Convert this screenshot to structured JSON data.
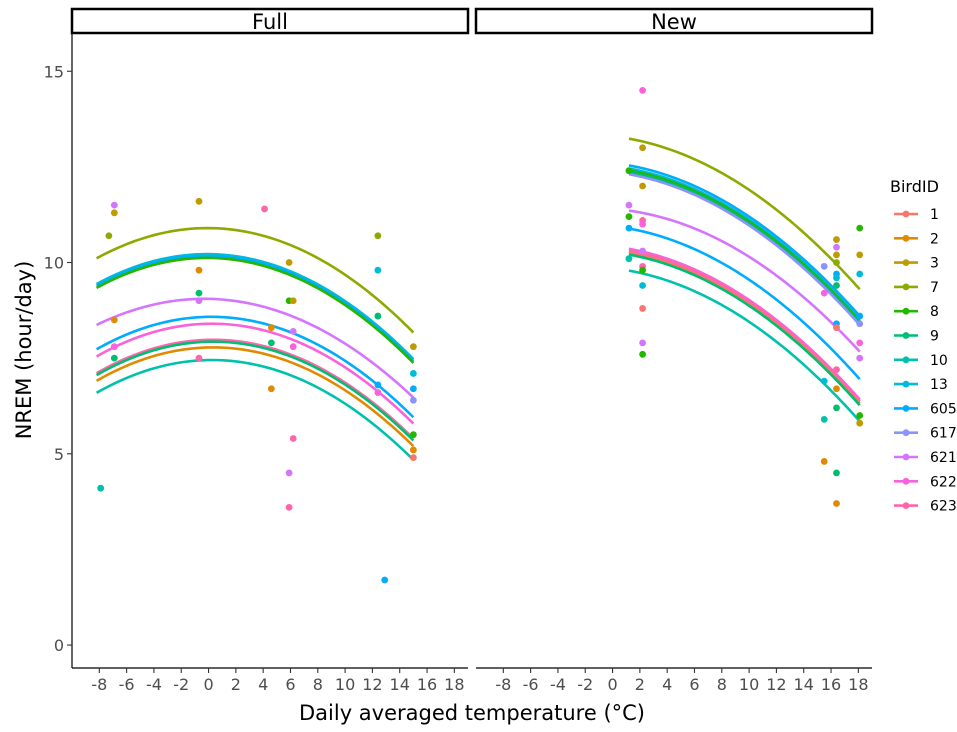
{
  "chart_data": {
    "type": "scatter",
    "xlabel": "Daily averaged temperature (°C)",
    "ylabel": "NREM (hour/day)",
    "xlim": [
      -10,
      19
    ],
    "ylim": [
      -0.6,
      16
    ],
    "x_ticks": [
      -8,
      -6,
      -4,
      -2,
      0,
      2,
      4,
      6,
      8,
      10,
      12,
      14,
      16,
      18
    ],
    "y_ticks": [
      0,
      5,
      10,
      15
    ],
    "grid": false,
    "legend": {
      "title": "BirdID",
      "position": "right"
    },
    "series": [
      {
        "name": "1",
        "color": "#F8766D"
      },
      {
        "name": "2",
        "color": "#E18A00"
      },
      {
        "name": "3",
        "color": "#BE9C00"
      },
      {
        "name": "7",
        "color": "#8CAB00"
      },
      {
        "name": "8",
        "color": "#24B700"
      },
      {
        "name": "9",
        "color": "#00BE70"
      },
      {
        "name": "10",
        "color": "#00C1AB"
      },
      {
        "name": "13",
        "color": "#00BBDA"
      },
      {
        "name": "605",
        "color": "#00ACFC"
      },
      {
        "name": "617",
        "color": "#8B93FF"
      },
      {
        "name": "621",
        "color": "#D575FE"
      },
      {
        "name": "622",
        "color": "#F962DD"
      },
      {
        "name": "623",
        "color": "#FF65AC"
      }
    ],
    "panels": [
      {
        "title": "Full",
        "points": [
          {
            "series": "10",
            "x": -7.9,
            "y": 4.1
          },
          {
            "series": "7",
            "x": -7.3,
            "y": 10.7
          },
          {
            "series": "621",
            "x": -6.9,
            "y": 11.5
          },
          {
            "series": "3",
            "x": -6.9,
            "y": 11.3
          },
          {
            "series": "2",
            "x": -6.9,
            "y": 8.5
          },
          {
            "series": "622",
            "x": -6.9,
            "y": 7.8
          },
          {
            "series": "9",
            "x": -6.9,
            "y": 7.5
          },
          {
            "series": "3",
            "x": -0.7,
            "y": 11.6
          },
          {
            "series": "2",
            "x": -0.7,
            "y": 9.8
          },
          {
            "series": "9",
            "x": -0.7,
            "y": 9.2
          },
          {
            "series": "621",
            "x": -0.7,
            "y": 9.0
          },
          {
            "series": "623",
            "x": -0.7,
            "y": 7.5
          },
          {
            "series": "623",
            "x": 4.1,
            "y": 11.4
          },
          {
            "series": "2",
            "x": 4.6,
            "y": 8.3
          },
          {
            "series": "9",
            "x": 4.6,
            "y": 7.9
          },
          {
            "series": "2",
            "x": 4.6,
            "y": 6.7
          },
          {
            "series": "3",
            "x": 5.9,
            "y": 10.0
          },
          {
            "series": "8",
            "x": 5.9,
            "y": 9.0
          },
          {
            "series": "3",
            "x": 6.2,
            "y": 9.0
          },
          {
            "series": "621",
            "x": 6.2,
            "y": 8.2
          },
          {
            "series": "622",
            "x": 6.2,
            "y": 7.8
          },
          {
            "series": "623",
            "x": 6.2,
            "y": 5.4
          },
          {
            "series": "621",
            "x": 5.9,
            "y": 4.5
          },
          {
            "series": "623",
            "x": 5.9,
            "y": 3.6
          },
          {
            "series": "7",
            "x": 12.4,
            "y": 10.7
          },
          {
            "series": "13",
            "x": 12.4,
            "y": 9.8
          },
          {
            "series": "9",
            "x": 12.4,
            "y": 8.6
          },
          {
            "series": "605",
            "x": 12.4,
            "y": 6.8
          },
          {
            "series": "622",
            "x": 12.4,
            "y": 6.6
          },
          {
            "series": "605",
            "x": 12.9,
            "y": 1.7
          },
          {
            "series": "3",
            "x": 15.0,
            "y": 7.8
          },
          {
            "series": "13",
            "x": 15.0,
            "y": 7.1
          },
          {
            "series": "605",
            "x": 15.0,
            "y": 6.7
          },
          {
            "series": "617",
            "x": 15.0,
            "y": 6.4
          },
          {
            "series": "8",
            "x": 15.0,
            "y": 5.5
          },
          {
            "series": "2",
            "x": 15.0,
            "y": 5.1
          },
          {
            "series": "1",
            "x": 15.0,
            "y": 4.9
          }
        ],
        "fits": [
          {
            "series": "7",
            "xmin": -8.2,
            "xmax": 15.0,
            "c": [
              10.9,
              -0.002,
              -0.012
            ]
          },
          {
            "series": "13",
            "xmin": -8.2,
            "xmax": 15.0,
            "c": [
              10.22,
              -0.003,
              -0.012
            ]
          },
          {
            "series": "605",
            "xmin": -8.2,
            "xmax": 15.0,
            "c": [
              10.17,
              -0.003,
              -0.012
            ]
          },
          {
            "series": "8",
            "xmin": -8.2,
            "xmax": 15.0,
            "c": [
              10.12,
              -0.003,
              -0.012
            ]
          },
          {
            "series": "621",
            "xmin": -8.2,
            "xmax": 15.0,
            "c": [
              9.05,
              -0.007,
              -0.011
            ]
          },
          {
            "series": "605",
            "xmin": -8.2,
            "xmax": 15.0,
            "c": [
              8.58,
              0.005,
              -0.012
            ]
          },
          {
            "series": "622",
            "xmin": -8.2,
            "xmax": 15.0,
            "c": [
              8.4,
              0.006,
              -0.012
            ]
          },
          {
            "series": "623",
            "xmin": -8.2,
            "xmax": 15.0,
            "c": [
              7.98,
              0.008,
              -0.012
            ]
          },
          {
            "series": "9",
            "xmin": -8.2,
            "xmax": 15.0,
            "c": [
              7.93,
              0.008,
              -0.012
            ]
          },
          {
            "series": "2",
            "xmin": -8.2,
            "xmax": 15.0,
            "c": [
              7.78,
              0.008,
              -0.012
            ]
          },
          {
            "series": "10",
            "xmin": -8.2,
            "xmax": 15.0,
            "c": [
              7.45,
              0.006,
              -0.012
            ]
          }
        ]
      },
      {
        "title": "New",
        "points": [
          {
            "series": "622",
            "x": 2.2,
            "y": 14.5
          },
          {
            "series": "3",
            "x": 2.2,
            "y": 13.0
          },
          {
            "series": "8",
            "x": 1.2,
            "y": 12.4
          },
          {
            "series": "3",
            "x": 2.2,
            "y": 12.0
          },
          {
            "series": "621",
            "x": 1.2,
            "y": 11.5
          },
          {
            "series": "8",
            "x": 1.2,
            "y": 11.2
          },
          {
            "series": "623",
            "x": 2.2,
            "y": 11.1
          },
          {
            "series": "622",
            "x": 2.2,
            "y": 11.0
          },
          {
            "series": "605",
            "x": 1.2,
            "y": 10.9
          },
          {
            "series": "10",
            "x": 1.2,
            "y": 10.1
          },
          {
            "series": "621",
            "x": 2.2,
            "y": 10.3
          },
          {
            "series": "623",
            "x": 2.2,
            "y": 9.9
          },
          {
            "series": "8",
            "x": 2.2,
            "y": 9.8
          },
          {
            "series": "13",
            "x": 2.2,
            "y": 9.4
          },
          {
            "series": "1",
            "x": 2.2,
            "y": 8.8
          },
          {
            "series": "621",
            "x": 2.2,
            "y": 7.9
          },
          {
            "series": "8",
            "x": 2.2,
            "y": 7.6
          },
          {
            "series": "3",
            "x": 16.4,
            "y": 10.6
          },
          {
            "series": "621",
            "x": 16.4,
            "y": 10.4
          },
          {
            "series": "3",
            "x": 16.4,
            "y": 10.2
          },
          {
            "series": "7",
            "x": 16.4,
            "y": 10.0
          },
          {
            "series": "617",
            "x": 15.5,
            "y": 9.9
          },
          {
            "series": "605",
            "x": 16.4,
            "y": 9.7
          },
          {
            "series": "13",
            "x": 16.4,
            "y": 9.6
          },
          {
            "series": "9",
            "x": 16.4,
            "y": 9.4
          },
          {
            "series": "622",
            "x": 15.5,
            "y": 9.2
          },
          {
            "series": "605",
            "x": 16.4,
            "y": 8.4
          },
          {
            "series": "617",
            "x": 16.4,
            "y": 8.3
          },
          {
            "series": "1",
            "x": 16.4,
            "y": 8.3
          },
          {
            "series": "623",
            "x": 16.4,
            "y": 7.2
          },
          {
            "series": "13",
            "x": 15.5,
            "y": 6.9
          },
          {
            "series": "2",
            "x": 16.4,
            "y": 6.7
          },
          {
            "series": "9",
            "x": 16.4,
            "y": 6.2
          },
          {
            "series": "10",
            "x": 15.5,
            "y": 5.9
          },
          {
            "series": "2",
            "x": 15.5,
            "y": 4.8
          },
          {
            "series": "9",
            "x": 16.4,
            "y": 4.5
          },
          {
            "series": "2",
            "x": 16.4,
            "y": 3.7
          },
          {
            "series": "8",
            "x": 18.1,
            "y": 10.9
          },
          {
            "series": "3",
            "x": 18.1,
            "y": 10.2
          },
          {
            "series": "13",
            "x": 18.1,
            "y": 9.7
          },
          {
            "series": "605",
            "x": 18.1,
            "y": 8.6
          },
          {
            "series": "617",
            "x": 18.1,
            "y": 8.4
          },
          {
            "series": "622",
            "x": 18.1,
            "y": 7.9
          },
          {
            "series": "621",
            "x": 18.1,
            "y": 7.5
          },
          {
            "series": "8",
            "x": 18.1,
            "y": 6.0
          },
          {
            "series": "3",
            "x": 18.1,
            "y": 5.8
          }
        ],
        "fits": [
          {
            "series": "7",
            "xmin": 1.2,
            "xmax": 18.1,
            "c": [
              13.3,
              -0.04,
              -0.01
            ]
          },
          {
            "series": "605",
            "xmin": 1.2,
            "xmax": 18.1,
            "c": [
              12.6,
              -0.04,
              -0.01
            ]
          },
          {
            "series": "13",
            "xmin": 1.2,
            "xmax": 18.1,
            "c": [
              12.52,
              -0.04,
              -0.01
            ]
          },
          {
            "series": "8",
            "xmin": 1.2,
            "xmax": 18.1,
            "c": [
              12.47,
              -0.04,
              -0.01
            ]
          },
          {
            "series": "9",
            "xmin": 1.2,
            "xmax": 18.1,
            "c": [
              12.42,
              -0.04,
              -0.01
            ]
          },
          {
            "series": "617",
            "xmin": 1.2,
            "xmax": 18.1,
            "c": [
              12.37,
              -0.04,
              -0.01
            ]
          },
          {
            "series": "621",
            "xmin": 1.2,
            "xmax": 18.1,
            "c": [
              11.4,
              -0.025,
              -0.01
            ]
          },
          {
            "series": "605",
            "xmin": 1.2,
            "xmax": 18.1,
            "c": [
              10.95,
              -0.04,
              -0.01
            ]
          },
          {
            "series": "622",
            "xmin": 1.2,
            "xmax": 18.1,
            "c": [
              10.42,
              -0.04,
              -0.01
            ]
          },
          {
            "series": "623",
            "xmin": 1.2,
            "xmax": 18.1,
            "c": [
              10.37,
              -0.04,
              -0.01
            ]
          },
          {
            "series": "1",
            "xmin": 1.2,
            "xmax": 18.1,
            "c": [
              10.32,
              -0.04,
              -0.01
            ]
          },
          {
            "series": "9",
            "xmin": 1.2,
            "xmax": 18.1,
            "c": [
              10.27,
              -0.04,
              -0.01
            ]
          },
          {
            "series": "10",
            "xmin": 1.2,
            "xmax": 18.1,
            "c": [
              9.85,
              -0.04,
              -0.01
            ]
          }
        ]
      }
    ]
  }
}
